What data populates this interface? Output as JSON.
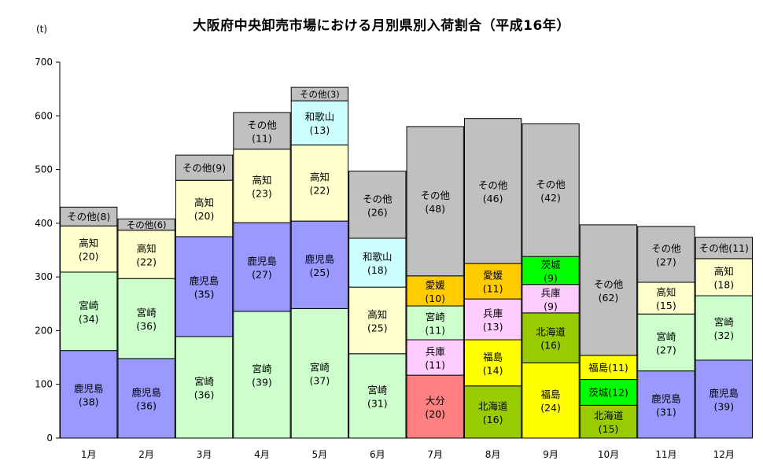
{
  "chart_data": {
    "type": "bar",
    "stacked": true,
    "title": "大阪府中央卸売市場における月別県別入荷割合（平成16年）",
    "ylabel": "(t)",
    "xlabel": "",
    "ylim": [
      0,
      700
    ],
    "yticks": [
      0,
      100,
      200,
      300,
      400,
      500,
      600,
      700
    ],
    "grid": false,
    "legend": "none",
    "categories": [
      "1月",
      "2月",
      "3月",
      "4月",
      "5月",
      "6月",
      "7月",
      "8月",
      "9月",
      "10月",
      "11月",
      "12月"
    ],
    "columns": [
      {
        "month": "1月",
        "total": 430,
        "segments": [
          {
            "name": "鹿児島",
            "value": 163,
            "pct": "(38)",
            "color": "#9999ff"
          },
          {
            "name": "宮崎",
            "value": 146,
            "pct": "(34)",
            "color": "#ccffcc"
          },
          {
            "name": "高知",
            "value": 86,
            "pct": "(20)",
            "color": "#ffffcc"
          },
          {
            "name": "その他",
            "value": 35,
            "pct": "(8)",
            "color": "#c0c0c0"
          }
        ]
      },
      {
        "month": "2月",
        "total": 408,
        "segments": [
          {
            "name": "鹿児島",
            "value": 148,
            "pct": "(36)",
            "color": "#9999ff"
          },
          {
            "name": "宮崎",
            "value": 149,
            "pct": "(36)",
            "color": "#ccffcc"
          },
          {
            "name": "高知",
            "value": 90,
            "pct": "(22)",
            "color": "#ffffcc"
          },
          {
            "name": "その他",
            "value": 21,
            "pct": "(6)",
            "color": "#c0c0c0"
          }
        ]
      },
      {
        "month": "3月",
        "total": 527,
        "segments": [
          {
            "name": "宮崎",
            "value": 189,
            "pct": "(36)",
            "color": "#ccffcc"
          },
          {
            "name": "鹿児島",
            "value": 186,
            "pct": "(35)",
            "color": "#9999ff"
          },
          {
            "name": "高知",
            "value": 105,
            "pct": "(20)",
            "color": "#ffffcc"
          },
          {
            "name": "その他",
            "value": 47,
            "pct": "(9)",
            "color": "#c0c0c0"
          }
        ]
      },
      {
        "month": "4月",
        "total": 606,
        "segments": [
          {
            "name": "宮崎",
            "value": 236,
            "pct": "(39)",
            "color": "#ccffcc"
          },
          {
            "name": "鹿児島",
            "value": 165,
            "pct": "(27)",
            "color": "#9999ff"
          },
          {
            "name": "高知",
            "value": 137,
            "pct": "(23)",
            "color": "#ffffcc"
          },
          {
            "name": "その他",
            "value": 68,
            "pct": "(11)",
            "color": "#c0c0c0"
          }
        ]
      },
      {
        "month": "5月",
        "total": 653,
        "segments": [
          {
            "name": "宮崎",
            "value": 241,
            "pct": "(37)",
            "color": "#ccffcc"
          },
          {
            "name": "鹿児島",
            "value": 163,
            "pct": "(25)",
            "color": "#9999ff"
          },
          {
            "name": "高知",
            "value": 142,
            "pct": "(22)",
            "color": "#ffffcc"
          },
          {
            "name": "和歌山",
            "value": 82,
            "pct": "(13)",
            "color": "#ccffff"
          },
          {
            "name": "その他",
            "value": 25,
            "pct": "(3)",
            "color": "#c0c0c0"
          }
        ]
      },
      {
        "month": "6月",
        "total": 497,
        "segments": [
          {
            "name": "宮崎",
            "value": 157,
            "pct": "(31)",
            "color": "#ccffcc"
          },
          {
            "name": "高知",
            "value": 124,
            "pct": "(25)",
            "color": "#ffffcc"
          },
          {
            "name": "和歌山",
            "value": 91,
            "pct": "(18)",
            "color": "#ccffff"
          },
          {
            "name": "その他",
            "value": 125,
            "pct": "(26)",
            "color": "#c0c0c0"
          }
        ]
      },
      {
        "month": "7月",
        "total": 580,
        "segments": [
          {
            "name": "大分",
            "value": 117,
            "pct": "(20)",
            "color": "#ff8080"
          },
          {
            "name": "兵庫",
            "value": 66,
            "pct": "(11)",
            "color": "#ffccff"
          },
          {
            "name": "宮崎",
            "value": 63,
            "pct": "(11)",
            "color": "#ccffcc"
          },
          {
            "name": "愛媛",
            "value": 56,
            "pct": "(10)",
            "color": "#ffcc00"
          },
          {
            "name": "その他",
            "value": 278,
            "pct": "(48)",
            "color": "#c0c0c0"
          }
        ]
      },
      {
        "month": "8月",
        "total": 595,
        "segments": [
          {
            "name": "北海道",
            "value": 97,
            "pct": "(16)",
            "color": "#99cc00"
          },
          {
            "name": "福島",
            "value": 86,
            "pct": "(14)",
            "color": "#ffff00"
          },
          {
            "name": "兵庫",
            "value": 76,
            "pct": "(13)",
            "color": "#ffccff"
          },
          {
            "name": "愛媛",
            "value": 66,
            "pct": "(11)",
            "color": "#ffcc00"
          },
          {
            "name": "その他",
            "value": 270,
            "pct": "(46)",
            "color": "#c0c0c0"
          }
        ]
      },
      {
        "month": "9月",
        "total": 585,
        "segments": [
          {
            "name": "福島",
            "value": 140,
            "pct": "(24)",
            "color": "#ffff00"
          },
          {
            "name": "北海道",
            "value": 93,
            "pct": "(16)",
            "color": "#99cc00"
          },
          {
            "name": "兵庫",
            "value": 53,
            "pct": "(9)",
            "color": "#ffccff"
          },
          {
            "name": "茨城",
            "value": 52,
            "pct": "(9)",
            "color": "#00ff00"
          },
          {
            "name": "その他",
            "value": 247,
            "pct": "(42)",
            "color": "#c0c0c0"
          }
        ]
      },
      {
        "month": "10月",
        "total": 397,
        "segments": [
          {
            "name": "北海道",
            "value": 61,
            "pct": "(15)",
            "color": "#99cc00"
          },
          {
            "name": "茨城",
            "value": 48,
            "pct": "(12)",
            "color": "#00ff00"
          },
          {
            "name": "福島",
            "value": 45,
            "pct": "(11)",
            "color": "#ffff00"
          },
          {
            "name": "その他",
            "value": 243,
            "pct": "(62)",
            "color": "#c0c0c0"
          }
        ]
      },
      {
        "month": "11月",
        "total": 394,
        "segments": [
          {
            "name": "鹿児島",
            "value": 125,
            "pct": "(31)",
            "color": "#9999ff"
          },
          {
            "name": "宮崎",
            "value": 106,
            "pct": "(27)",
            "color": "#ccffcc"
          },
          {
            "name": "高知",
            "value": 59,
            "pct": "(15)",
            "color": "#ffffcc"
          },
          {
            "name": "その他",
            "value": 104,
            "pct": "(27)",
            "color": "#c0c0c0"
          }
        ]
      },
      {
        "month": "12月",
        "total": 374,
        "segments": [
          {
            "name": "鹿児島",
            "value": 145,
            "pct": "(39)",
            "color": "#9999ff"
          },
          {
            "name": "宮崎",
            "value": 120,
            "pct": "(32)",
            "color": "#ccffcc"
          },
          {
            "name": "高知",
            "value": 69,
            "pct": "(18)",
            "color": "#ffffcc"
          },
          {
            "name": "その他",
            "value": 40,
            "pct": "(11)",
            "color": "#c0c0c0"
          }
        ]
      }
    ]
  }
}
